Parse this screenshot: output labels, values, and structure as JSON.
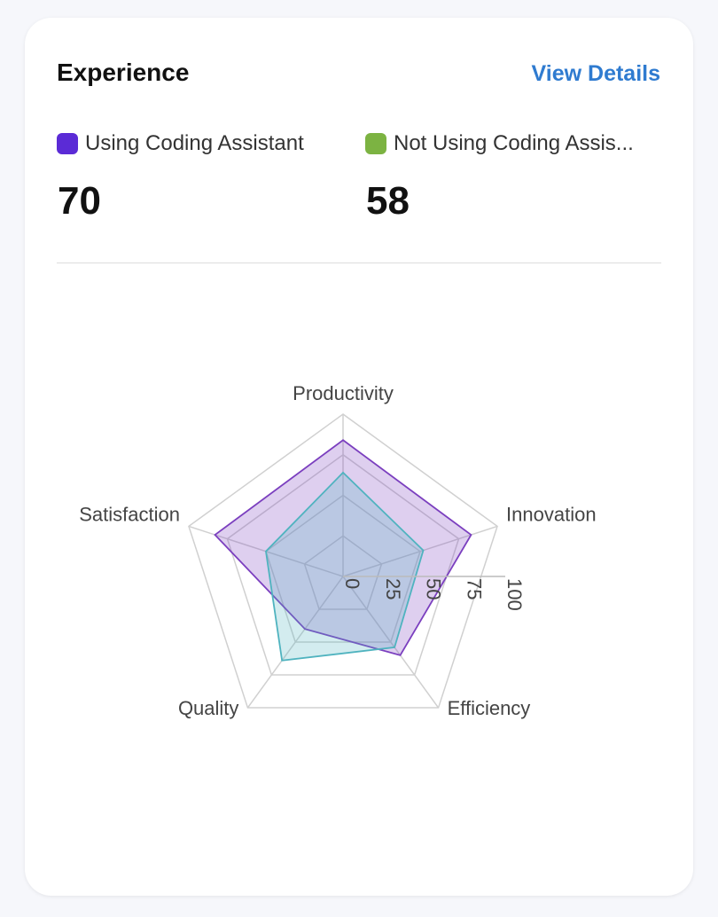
{
  "header": {
    "title": "Experience",
    "link": "View Details"
  },
  "chart_data": {
    "type": "radar",
    "categories": [
      "Productivity",
      "Innovation",
      "Efficiency",
      "Quality",
      "Satisfaction"
    ],
    "series": [
      {
        "name": "Using Coding Assistant",
        "color": "#5b2bd6",
        "chart_color": "#7b3fbf",
        "summary": 70,
        "values": [
          84,
          83,
          60,
          40,
          83
        ]
      },
      {
        "name": "Not Using Coding Assis...",
        "color": "#7cb342",
        "chart_color": "#4fb3bf",
        "summary": 58,
        "values": [
          64,
          52,
          54,
          64,
          50
        ]
      }
    ],
    "rlim": [
      0,
      100
    ],
    "rticks": [
      0,
      25,
      50,
      75,
      100
    ],
    "grid": true
  }
}
